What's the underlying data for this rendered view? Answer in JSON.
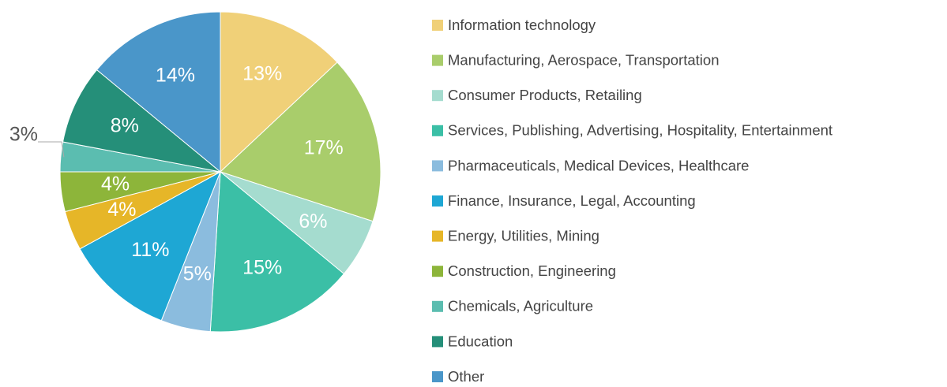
{
  "chart_data": {
    "type": "pie",
    "categories": [
      "Information technology",
      "Manufacturing, Aerospace, Transportation",
      "Consumer Products, Retailing",
      "Services, Publishing, Advertising, Hospitality, Entertainment",
      "Pharmaceuticals, Medical Devices, Healthcare",
      "Finance, Insurance, Legal, Accounting",
      "Energy, Utilities, Mining",
      "Construction, Engineering",
      "Chemicals, Agriculture",
      "Education",
      "Other"
    ],
    "values": [
      13,
      17,
      6,
      15,
      5,
      11,
      4,
      4,
      3,
      8,
      14
    ],
    "value_labels": [
      "13%",
      "17%",
      "6%",
      "15%",
      "5%",
      "11%",
      "4%",
      "4%",
      "3%",
      "8%",
      "14%"
    ],
    "colors": [
      "#f0d078",
      "#a9cd6b",
      "#a5dccf",
      "#3bbfa6",
      "#8bbcde",
      "#1ea7d4",
      "#e6b628",
      "#8db53a",
      "#5bbdb0",
      "#258f79",
      "#4a96c9"
    ],
    "legend": "right"
  }
}
